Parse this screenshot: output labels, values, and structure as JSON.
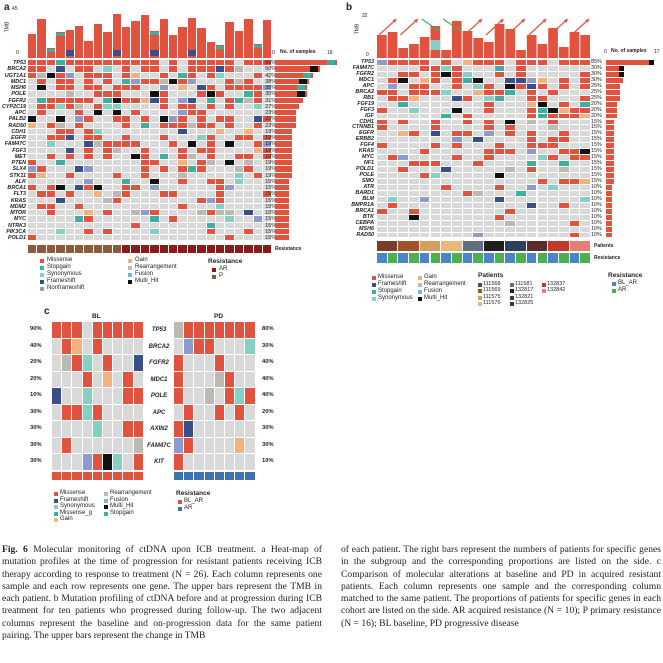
{
  "figure": {
    "panel_labels": {
      "a": "a",
      "b": "b",
      "c": "c"
    },
    "colors": {
      "missense": "#e1533f",
      "stopgain": "#3fae9f",
      "synonymous": "#86d0c3",
      "frameshift": "#3a4f8a",
      "nonframeshift": "#8e99cc",
      "gain": "#f2b17d",
      "rearrangement": "#bdb8b0",
      "fusion": "#74b8d9",
      "multi_hit": "#111111",
      "empty": "#d9d9d9",
      "ar": "#8b1a1a",
      "p": "#8b5a3c",
      "pd_bar": "#3f72b5"
    },
    "panel_a": {
      "tmb_label": "TMB",
      "tmb_max": "45",
      "tmb_min": "0",
      "side_axis_label": "No. of samples",
      "side_min": "0",
      "side_max": "18",
      "genes": [
        "TP53",
        "BRCA2",
        "UGT1A1",
        "MDC1",
        "MSH6",
        "POLE",
        "FGFR2",
        "CYP2C19",
        "APC",
        "PALB2",
        "RAD50",
        "CDH1",
        "EGFR",
        "FAM47C",
        "FGF3",
        "MET",
        "PTEN",
        "SLX4",
        "STK11",
        "ALK",
        "BRCA1",
        "FLT3",
        "KRAS",
        "MDM2",
        "MTOR",
        "MYC",
        "NTRK3",
        "PIK3CA",
        "POLD1"
      ],
      "pcts": [
        "69%",
        "50%",
        "42%",
        "38%",
        "35%",
        "35%",
        "31%",
        "27%",
        "23%",
        "23%",
        "23%",
        "19%",
        "19%",
        "19%",
        "19%",
        "19%",
        "19%",
        "19%",
        "19%",
        "15%",
        "15%",
        "15%",
        "15%",
        "15%",
        "15%",
        "15%",
        "15%",
        "15%",
        "15%"
      ],
      "resistance_label": "Resistance",
      "legend": {
        "left": [
          "Missense",
          "Stopgain",
          "Synonymous",
          "Frameshift",
          "Nonframeshift"
        ],
        "mid": [
          "Gain",
          "Rearrangement",
          "Fusion",
          "Multi_Hit"
        ],
        "res_title": "Resistance",
        "res": [
          "AR",
          "P"
        ]
      }
    },
    "panel_b": {
      "tmb_label": "TMB",
      "tmb_max": "32",
      "tmb_min": "0",
      "side_axis_label": "No. of samples",
      "side_min": "0",
      "side_max": "17",
      "genes": [
        "TP53",
        "FAM47C",
        "FGFR2",
        "MDC1",
        "APC",
        "BRCA2",
        "RB1",
        "FGF19",
        "FGF3",
        "IGF",
        "CDH1",
        "CTNNB1",
        "EGFR",
        "ERBB2",
        "FGF4",
        "KRAS",
        "MYC",
        "NF1",
        "POLD1",
        "POLE",
        "SMO",
        "ATR",
        "BARD1",
        "BLM",
        "BMPR1A",
        "BRCA1",
        "BTK",
        "CEBPA",
        "MSH6",
        "RAD50"
      ],
      "pcts": [
        "85%",
        "30%",
        "30%",
        "30%",
        "25%",
        "25%",
        "25%",
        "20%",
        "20%",
        "20%",
        "15%",
        "15%",
        "15%",
        "15%",
        "15%",
        "15%",
        "15%",
        "15%",
        "15%",
        "15%",
        "15%",
        "10%",
        "10%",
        "10%",
        "10%",
        "10%",
        "10%",
        "10%",
        "10%",
        "10%"
      ],
      "patients_label": "Patients",
      "resistance_label": "Resistance",
      "legend": {
        "left": [
          "Missense",
          "Frameshift",
          "Stopgain",
          "Synonymous"
        ],
        "mid": [
          "Gain",
          "Rearrangement",
          "Fusion",
          "Multi_Hit"
        ],
        "patients_title": "Patients",
        "patients": [
          "111568",
          "111569",
          "111575",
          "111576",
          "111581",
          "132817",
          "132821",
          "132825",
          "132837",
          "132842"
        ],
        "res_title": "Resistance",
        "res": [
          "BL_AR",
          "AR"
        ]
      }
    },
    "panel_c": {
      "bl_label": "BL",
      "pd_label": "PD",
      "genes": [
        "TP53",
        "BRCA2",
        "FGFR2",
        "MDC1",
        "POLE",
        "APC",
        "AXIN2",
        "FAM47C",
        "KIT"
      ],
      "bl_pcts": [
        "90%",
        "40%",
        "20%",
        "20%",
        "10%",
        "30%",
        "30%",
        "30%",
        "30%"
      ],
      "pd_pcts": [
        "80%",
        "30%",
        "40%",
        "40%",
        "40%",
        "20%",
        "30%",
        "30%",
        "10%"
      ],
      "legend": {
        "left": [
          "Missense",
          "Frameshift",
          "Synonymous",
          "Missense_g",
          "Gain"
        ],
        "mid": [
          "Rearrangement",
          "Fusion",
          "Multi_Hit",
          "Stopgain"
        ],
        "res_title": "Resistance",
        "res": [
          "BL_AR",
          "AR"
        ]
      }
    },
    "caption": {
      "title": "Fig. 6",
      "col1": "Molecular monitoring of ctDNA upon ICB treatment. a Heat-map of mutation profiles at the time of progression for resistant patients receiving ICB therapy according to response to treatment (N = 26). Each column represents one sample and each row represents one gene. The upper bars represent the TMB in each patient. b Mutation profiling of ctDNA before and at progression during ICB treatment for ten patients who progressed during follow-up. The two adjacent columns represent the baseline and on-progression data for the same patient pairing. The upper bars represent the change in TMB",
      "col2": "of each patient. The right bars represent the numbers of patients for specific genes in the subgroup and the corresponding proportions are listed on the side. c Comparison of molecular alterations at baseline and PD in acquired resistant patients. Each column represents one sample and the corresponding column matched to the same patient. The proportions of patients for specific genes in each cohort are listed on the side. AR acquired resistance (N = 10); P primary resistance (N = 16); BL baseline, PD progressive disease"
    }
  }
}
